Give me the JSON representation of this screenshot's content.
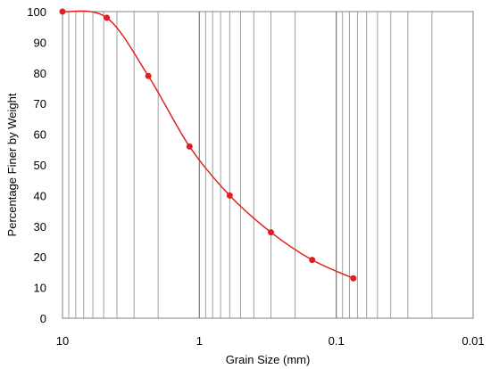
{
  "chart_data": {
    "type": "scatter",
    "title": "",
    "xlabel": "Grain Size (mm)",
    "ylabel": "Percentage Finer by Weight",
    "x_scale": "log",
    "x_reversed": true,
    "xlim": [
      10,
      0.01
    ],
    "ylim": [
      0,
      100
    ],
    "x_ticks": [
      10,
      1,
      0.1,
      0.01
    ],
    "x_tick_labels": [
      "10",
      "1",
      "0.1",
      "0.01"
    ],
    "y_ticks": [
      0,
      10,
      20,
      30,
      40,
      50,
      60,
      70,
      80,
      90,
      100
    ],
    "y_tick_labels": [
      "0",
      "10",
      "20",
      "30",
      "40",
      "50",
      "60",
      "70",
      "80",
      "90",
      "100"
    ],
    "grid": "vertical log minor lines",
    "line_style": "smoothed line with markers",
    "color": "#e02020",
    "x": [
      10,
      4.75,
      2.36,
      1.18,
      0.6,
      0.3,
      0.15,
      0.075
    ],
    "y": [
      100,
      98,
      79,
      56,
      40,
      28,
      19,
      13
    ]
  }
}
